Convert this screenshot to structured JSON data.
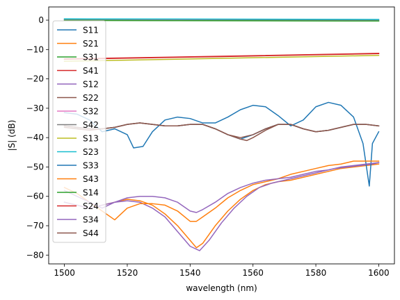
{
  "chart_data": {
    "type": "line",
    "title": "",
    "xlabel": "wavelength (nm)",
    "ylabel": "|S| (dB)",
    "xlim": [
      1495,
      1605
    ],
    "ylim": [
      -83,
      4.5
    ],
    "xticks": [
      1500,
      1520,
      1540,
      1560,
      1580,
      1600
    ],
    "yticks": [
      0,
      -10,
      -20,
      -30,
      -40,
      -50,
      -60,
      -70,
      -80
    ],
    "grid": false,
    "legend_position": "upper-left",
    "series": [
      {
        "name": "S11",
        "color": "#1f77b4",
        "x": [
          1500,
          1504,
          1508,
          1512,
          1516,
          1520,
          1524,
          1528,
          1532,
          1536,
          1540,
          1544,
          1548,
          1552,
          1556,
          1560,
          1564,
          1568,
          1572,
          1576,
          1580,
          1584,
          1588,
          1592,
          1596,
          1600
        ],
        "y": [
          -36,
          -36.5,
          -37,
          -37,
          -36.5,
          -35.5,
          -35,
          -35.5,
          -36,
          -36,
          -35.5,
          -35.5,
          -37,
          -39,
          -40.5,
          -39,
          -37,
          -35.5,
          -35.5,
          -37,
          -38,
          -37.5,
          -36.5,
          -35.5,
          -35.5,
          -36
        ]
      },
      {
        "name": "S21",
        "color": "#ff7f0e",
        "x": [
          1500,
          1504,
          1508,
          1512,
          1516,
          1520,
          1524,
          1528,
          1532,
          1536,
          1540,
          1542,
          1544,
          1548,
          1552,
          1556,
          1560,
          1564,
          1568,
          1572,
          1576,
          1580,
          1584,
          1588,
          1592,
          1596,
          1600
        ],
        "y": [
          -62,
          -63,
          -64,
          -63,
          -62,
          -61,
          -61.5,
          -63,
          -66,
          -70,
          -75,
          -77.5,
          -76,
          -70,
          -65,
          -61,
          -58,
          -56,
          -55,
          -54.5,
          -53.5,
          -52.5,
          -51.5,
          -50.5,
          -50,
          -49.5,
          -49
        ]
      },
      {
        "name": "S31",
        "color": "#2ca02c",
        "x": [
          1500,
          1550,
          1600
        ],
        "y": [
          -0.05,
          -0.15,
          -0.25
        ]
      },
      {
        "name": "S41",
        "color": "#d62728",
        "x": [
          1500,
          1550,
          1600
        ],
        "y": [
          -13.2,
          -12.3,
          -11.3
        ]
      },
      {
        "name": "S12",
        "color": "#9467bd",
        "x": [
          1500,
          1504,
          1508,
          1512,
          1516,
          1520,
          1524,
          1528,
          1532,
          1536,
          1540,
          1543,
          1546,
          1550,
          1554,
          1558,
          1562,
          1566,
          1570,
          1574,
          1578,
          1582,
          1586,
          1590,
          1594,
          1598,
          1600
        ],
        "y": [
          -62,
          -63,
          -64,
          -63,
          -62,
          -61.5,
          -62,
          -64,
          -67,
          -72,
          -77,
          -78.5,
          -75,
          -69,
          -64,
          -60,
          -57,
          -55.5,
          -54.5,
          -53.5,
          -52.5,
          -51.5,
          -50.5,
          -50,
          -49.5,
          -49,
          -48.5
        ]
      },
      {
        "name": "S22",
        "color": "#8c564b",
        "x": [
          1500,
          1504,
          1508,
          1512,
          1516,
          1520,
          1524,
          1528,
          1532,
          1536,
          1540,
          1544,
          1548,
          1552,
          1556,
          1558,
          1560,
          1564,
          1568,
          1572,
          1576,
          1580,
          1584,
          1588,
          1592,
          1596,
          1600
        ],
        "y": [
          -36,
          -36.5,
          -37,
          -37,
          -36.5,
          -35.5,
          -35,
          -35.5,
          -36,
          -36,
          -35.5,
          -35.5,
          -37,
          -39,
          -40.5,
          -41,
          -40,
          -37.5,
          -35.5,
          -35.5,
          -37,
          -38,
          -37.5,
          -36.5,
          -35.5,
          -35.5,
          -36
        ]
      },
      {
        "name": "S32",
        "color": "#e377c2",
        "x": [
          1500,
          1550,
          1600
        ],
        "y": [
          0.25,
          0.15,
          0.05
        ]
      },
      {
        "name": "S42",
        "color": "#7f7f7f",
        "x": [
          1500,
          1550,
          1600
        ],
        "y": [
          0.3,
          0.2,
          0.1
        ]
      },
      {
        "name": "S13",
        "color": "#bcbd22",
        "x": [
          1500,
          1550,
          1600
        ],
        "y": [
          -14,
          -13,
          -12
        ]
      },
      {
        "name": "S23",
        "color": "#17becf",
        "x": [
          1500,
          1550,
          1600
        ],
        "y": [
          0.45,
          0.35,
          0.25
        ]
      },
      {
        "name": "S33",
        "color": "#1f77b4",
        "x": [
          1500,
          1504,
          1508,
          1512,
          1516,
          1520,
          1522,
          1525,
          1528,
          1532,
          1536,
          1540,
          1544,
          1548,
          1552,
          1556,
          1560,
          1564,
          1568,
          1572,
          1576,
          1580,
          1584,
          1588,
          1592,
          1595,
          1597,
          1598,
          1600
        ],
        "y": [
          -31.5,
          -32,
          -34,
          -38,
          -37,
          -39,
          -43.5,
          -43,
          -38,
          -34,
          -33,
          -33.5,
          -35,
          -35,
          -33,
          -30.5,
          -29,
          -29.5,
          -32.5,
          -36,
          -34,
          -29.5,
          -28,
          -29,
          -33,
          -42,
          -56.5,
          -42,
          -38
        ]
      },
      {
        "name": "S43",
        "color": "#ff7f0e",
        "x": [
          1500,
          1504,
          1508,
          1512,
          1516,
          1520,
          1524,
          1528,
          1532,
          1536,
          1540,
          1542,
          1544,
          1548,
          1552,
          1556,
          1560,
          1564,
          1568,
          1572,
          1576,
          1580,
          1584,
          1588,
          1592,
          1596,
          1600
        ],
        "y": [
          -57,
          -59,
          -62,
          -65,
          -68,
          -64,
          -62.5,
          -62.5,
          -63,
          -65,
          -68.5,
          -68.5,
          -67,
          -64,
          -60.5,
          -58,
          -56,
          -55,
          -54,
          -52.5,
          -51.5,
          -50.5,
          -49.5,
          -49,
          -48,
          -48,
          -48
        ]
      },
      {
        "name": "S14",
        "color": "#2ca02c",
        "x": [
          1500,
          1550,
          1600
        ],
        "y": [
          -0.1,
          -0.2,
          -0.3
        ]
      },
      {
        "name": "S24",
        "color": "#d62728",
        "x": [
          1500,
          1550,
          1600
        ],
        "y": [
          -13.3,
          -12.4,
          -11.4
        ]
      },
      {
        "name": "S34",
        "color": "#9467bd",
        "x": [
          1500,
          1504,
          1508,
          1512,
          1516,
          1520,
          1524,
          1528,
          1532,
          1536,
          1540,
          1542,
          1544,
          1548,
          1552,
          1556,
          1560,
          1564,
          1568,
          1572,
          1576,
          1580,
          1584,
          1588,
          1592,
          1596,
          1600
        ],
        "y": [
          -58,
          -60,
          -62,
          -64,
          -62,
          -60.5,
          -60,
          -60,
          -60.5,
          -62,
          -65,
          -65.5,
          -64.5,
          -62,
          -59,
          -57,
          -55.5,
          -54.5,
          -54,
          -53.5,
          -52.5,
          -51.5,
          -51,
          -50,
          -49.5,
          -49,
          -48.5
        ]
      },
      {
        "name": "S44",
        "color": "#8c564b",
        "x": [
          1500,
          1504,
          1508,
          1512,
          1516,
          1520,
          1524,
          1528,
          1532,
          1536,
          1540,
          1544,
          1548,
          1552,
          1556,
          1560,
          1564,
          1568,
          1572,
          1576,
          1580,
          1584,
          1588,
          1592,
          1596,
          1600
        ],
        "y": [
          -36.5,
          -37,
          -37.5,
          -37,
          -36.5,
          -35.5,
          -35,
          -35.5,
          -36,
          -36,
          -35.5,
          -35.5,
          -37,
          -39,
          -40,
          -39,
          -37,
          -35.5,
          -35.5,
          -37,
          -38,
          -37.5,
          -36.5,
          -35.5,
          -35.5,
          -36
        ]
      }
    ]
  }
}
